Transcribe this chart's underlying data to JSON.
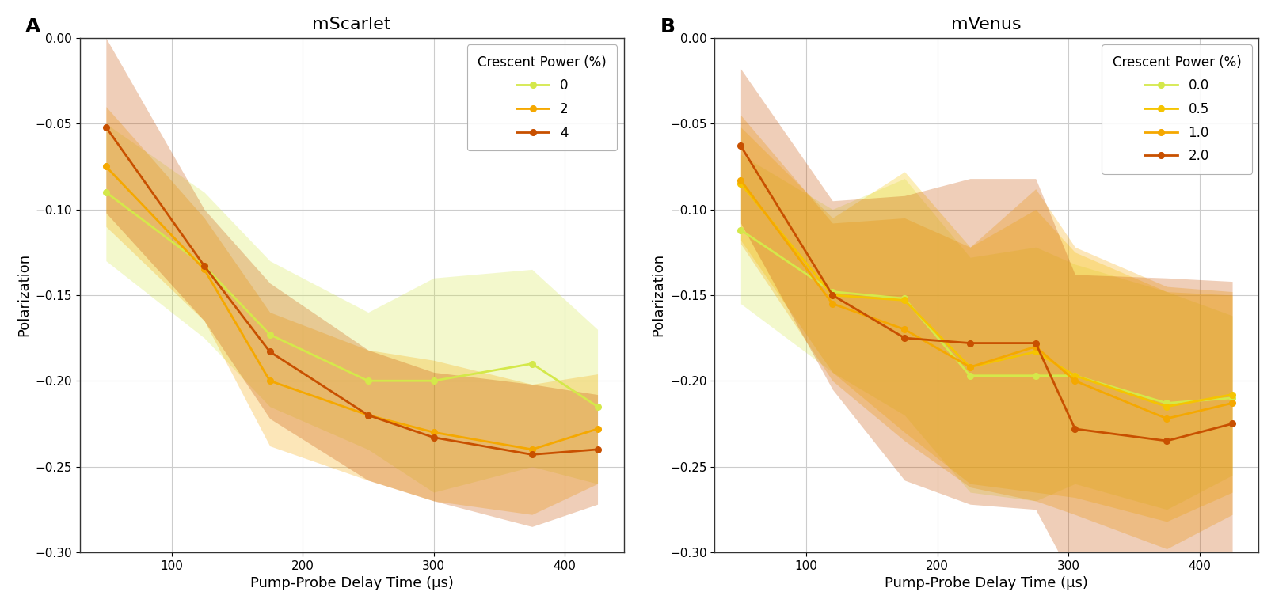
{
  "panel_A": {
    "title": "mScarlet",
    "label": "A",
    "series": [
      {
        "name": "0",
        "color": "#d4e84a",
        "x": [
          50,
          125,
          175,
          250,
          300,
          375,
          425
        ],
        "y": [
          -0.09,
          -0.133,
          -0.173,
          -0.2,
          -0.2,
          -0.19,
          -0.215
        ],
        "y_lo": [
          -0.13,
          -0.175,
          -0.215,
          -0.24,
          -0.265,
          -0.25,
          -0.26
        ],
        "y_hi": [
          -0.05,
          -0.09,
          -0.13,
          -0.16,
          -0.14,
          -0.135,
          -0.17
        ]
      },
      {
        "name": "2",
        "color": "#f5a800",
        "x": [
          50,
          125,
          175,
          250,
          300,
          375,
          425
        ],
        "y": [
          -0.075,
          -0.135,
          -0.2,
          -0.22,
          -0.23,
          -0.24,
          -0.228
        ],
        "y_lo": [
          -0.11,
          -0.165,
          -0.238,
          -0.258,
          -0.27,
          -0.278,
          -0.26
        ],
        "y_hi": [
          -0.04,
          -0.105,
          -0.16,
          -0.182,
          -0.188,
          -0.202,
          -0.196
        ]
      },
      {
        "name": "4",
        "color": "#c85000",
        "x": [
          50,
          125,
          175,
          250,
          300,
          375,
          425
        ],
        "y": [
          -0.052,
          -0.133,
          -0.183,
          -0.22,
          -0.233,
          -0.243,
          -0.24
        ],
        "y_lo": [
          -0.102,
          -0.165,
          -0.222,
          -0.258,
          -0.27,
          -0.285,
          -0.272
        ],
        "y_hi": [
          0.0,
          -0.1,
          -0.143,
          -0.182,
          -0.195,
          -0.202,
          -0.208
        ]
      }
    ]
  },
  "panel_B": {
    "title": "mVenus",
    "label": "B",
    "series": [
      {
        "name": "0.0",
        "color": "#d4e84a",
        "x": [
          50,
          120,
          175,
          225,
          275,
          305,
          375,
          425
        ],
        "y": [
          -0.112,
          -0.148,
          -0.152,
          -0.197,
          -0.197,
          -0.197,
          -0.213,
          -0.21
        ],
        "y_lo": [
          -0.155,
          -0.195,
          -0.22,
          -0.265,
          -0.27,
          -0.26,
          -0.275,
          -0.255
        ],
        "y_hi": [
          -0.068,
          -0.1,
          -0.082,
          -0.128,
          -0.122,
          -0.132,
          -0.148,
          -0.162
        ]
      },
      {
        "name": "0.5",
        "color": "#f5c400",
        "x": [
          50,
          120,
          175,
          225,
          275,
          305,
          375,
          425
        ],
        "y": [
          -0.085,
          -0.15,
          -0.153,
          -0.192,
          -0.183,
          -0.197,
          -0.215,
          -0.208
        ],
        "y_lo": [
          -0.118,
          -0.195,
          -0.23,
          -0.26,
          -0.265,
          -0.268,
          -0.282,
          -0.265
        ],
        "y_hi": [
          -0.052,
          -0.105,
          -0.078,
          -0.122,
          -0.1,
          -0.125,
          -0.148,
          -0.15
        ]
      },
      {
        "name": "1.0",
        "color": "#f5a800",
        "x": [
          50,
          120,
          175,
          225,
          275,
          305,
          375,
          425
        ],
        "y": [
          -0.083,
          -0.155,
          -0.17,
          -0.192,
          -0.18,
          -0.2,
          -0.222,
          -0.213
        ],
        "y_lo": [
          -0.12,
          -0.2,
          -0.235,
          -0.262,
          -0.27,
          -0.278,
          -0.298,
          -0.278
        ],
        "y_hi": [
          -0.045,
          -0.108,
          -0.105,
          -0.122,
          -0.088,
          -0.122,
          -0.145,
          -0.148
        ]
      },
      {
        "name": "2.0",
        "color": "#c85000",
        "x": [
          50,
          120,
          175,
          225,
          275,
          305,
          375,
          425
        ],
        "y": [
          -0.063,
          -0.15,
          -0.175,
          -0.178,
          -0.178,
          -0.228,
          -0.235,
          -0.225
        ],
        "y_lo": [
          -0.108,
          -0.205,
          -0.258,
          -0.272,
          -0.275,
          -0.318,
          -0.33,
          -0.308
        ],
        "y_hi": [
          -0.018,
          -0.095,
          -0.092,
          -0.082,
          -0.082,
          -0.138,
          -0.14,
          -0.142
        ]
      }
    ]
  },
  "xlabel": "Pump-Probe Delay Time (μs)",
  "ylabel": "Polarization",
  "legend_title": "Crescent Power (%)",
  "xlim": [
    30,
    445
  ],
  "ylim": [
    -0.3,
    0.0
  ],
  "yticks": [
    0.0,
    -0.05,
    -0.1,
    -0.15,
    -0.2,
    -0.25,
    -0.3
  ],
  "xticks": [
    100,
    200,
    300,
    400
  ],
  "background_color": "#ffffff",
  "grid_color": "#cccccc",
  "alpha_fill": 0.28,
  "linewidth": 2.0,
  "markersize": 5.5
}
